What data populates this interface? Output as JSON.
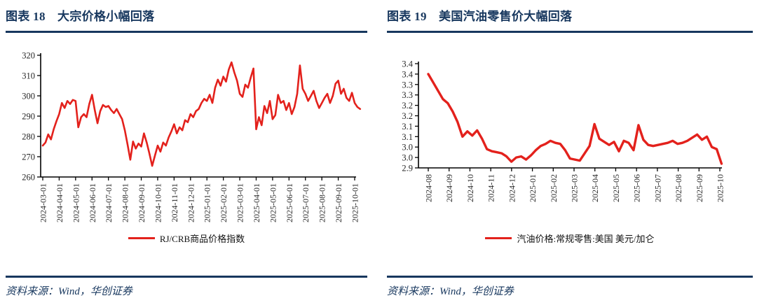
{
  "panels": [
    {
      "title": "图表 18　大宗价格小幅回落",
      "legend": "RJ/CRB商品价格指数",
      "source": "资料来源：Wind，华创证券"
    },
    {
      "title": "图表 19　美国汽油零售价大幅回落",
      "legend": "汽油价格:常规零售:美国 美元/加仑",
      "source": "资料来源：Wind，华创证券"
    }
  ],
  "colors": {
    "accent": "#17375E",
    "line": "#E3211C",
    "axis": "#000000",
    "tick_label": "#262626"
  },
  "chart_data": [
    {
      "type": "line",
      "title": "大宗价格小幅回落",
      "series_name": "RJ/CRB商品价格指数",
      "ylabel": "",
      "xlabel": "",
      "grid": false,
      "legend_position": "bottom-center",
      "ylim": [
        260,
        320
      ],
      "y_ticks": [
        {
          "v": 320,
          "label": "320"
        },
        {
          "v": 310,
          "label": "310"
        },
        {
          "v": 300,
          "label": "300"
        },
        {
          "v": 290,
          "label": "290"
        },
        {
          "v": 280,
          "label": "280"
        },
        {
          "v": 270,
          "label": "270"
        },
        {
          "v": 260,
          "label": "260"
        }
      ],
      "x_ticks": [
        "2024-03-01",
        "2024-04-01",
        "2024-05-01",
        "2024-06-01",
        "2024-07-01",
        "2024-08-01",
        "2024-09-01",
        "2024-10-01",
        "2024-11-01",
        "2024-12-01",
        "2025-01-01",
        "2025-02-01",
        "2025-03-01",
        "2025-04-01",
        "2025-05-01",
        "2025-06-01",
        "2025-07-01",
        "2025-08-01",
        "2025-09-01",
        "2025-10-01"
      ],
      "x_start": 0,
      "x_step": 0.16667,
      "values": [
        275.5,
        277,
        281,
        278.5,
        283.5,
        287.5,
        291,
        296.5,
        294,
        297.5,
        296,
        298,
        297.5,
        284.5,
        289.5,
        291,
        289.5,
        296,
        300.5,
        293,
        286.5,
        292.5,
        295.5,
        294.5,
        295,
        293,
        291.5,
        293.5,
        291,
        288.5,
        283,
        276,
        268.5,
        277.5,
        274,
        276.5,
        275,
        281.5,
        277,
        271.5,
        265.5,
        270.5,
        275.5,
        272.5,
        277,
        275.5,
        279.5,
        282.5,
        286,
        281.5,
        284.5,
        283,
        288,
        287,
        291,
        289.5,
        292.5,
        293.5,
        296.5,
        298.5,
        297.5,
        300.5,
        296.5,
        304,
        308,
        305,
        309.5,
        307,
        313,
        316.5,
        311.5,
        307.5,
        301,
        299.5,
        305.5,
        304,
        309,
        313.5,
        283.5,
        289.5,
        285.5,
        295,
        291.5,
        297.5,
        288.5,
        290.5,
        300.5,
        296.5,
        297.5,
        293,
        296.5,
        291,
        294.5,
        301,
        315,
        303.5,
        301,
        297.5,
        300,
        302.5,
        297.5,
        294,
        296.5,
        299,
        301,
        296.5,
        300,
        306,
        307.5,
        301,
        303.5,
        299,
        297.5,
        301.5,
        296.5,
        294.5,
        293.5
      ]
    },
    {
      "type": "line",
      "title": "美国汽油零售价大幅回落",
      "series_name": "汽油价格:常规零售:美国 美元/加仑",
      "ylabel": "",
      "xlabel": "",
      "grid": false,
      "legend_position": "bottom-center",
      "ylim": [
        2.9,
        3.4
      ],
      "y_ticks": [
        {
          "v": 3.4,
          "label": "3.4"
        },
        {
          "v": 3.35,
          "label": "3.4"
        },
        {
          "v": 3.3,
          "label": "3.3"
        },
        {
          "v": 3.25,
          "label": "3.3"
        },
        {
          "v": 3.2,
          "label": "3.2"
        },
        {
          "v": 3.15,
          "label": "3.2"
        },
        {
          "v": 3.1,
          "label": "3.1"
        },
        {
          "v": 3.05,
          "label": "3.1"
        },
        {
          "v": 3.0,
          "label": "3.0"
        },
        {
          "v": 2.95,
          "label": "3.0"
        },
        {
          "v": 2.9,
          "label": "2.9"
        }
      ],
      "x_ticks": [
        "2024-08",
        "2024-09",
        "2024-10",
        "2024-11",
        "2024-12",
        "2025-01",
        "2025-02",
        "2025-03",
        "2025-04",
        "2025-05",
        "2025-06",
        "2025-07",
        "2025-08",
        "2025-09",
        "2025-10"
      ],
      "x_start": 0,
      "x_step": 0.2347,
      "values": [
        3.35,
        3.31,
        3.27,
        3.23,
        3.21,
        3.17,
        3.12,
        3.05,
        3.075,
        3.055,
        3.08,
        3.04,
        2.99,
        2.98,
        2.975,
        2.97,
        2.955,
        2.93,
        2.95,
        2.955,
        2.94,
        2.96,
        2.985,
        3.005,
        3.015,
        3.03,
        3.02,
        3.015,
        2.985,
        2.945,
        2.94,
        2.935,
        2.97,
        3.005,
        3.11,
        3.04,
        3.025,
        3.01,
        3.025,
        2.98,
        3.03,
        3.02,
        2.985,
        3.105,
        3.035,
        3.01,
        3.005,
        3.01,
        3.015,
        3.02,
        3.03,
        3.015,
        3.02,
        3.03,
        3.045,
        3.06,
        3.035,
        3.05,
        3.0,
        2.99,
        2.92
      ]
    }
  ]
}
